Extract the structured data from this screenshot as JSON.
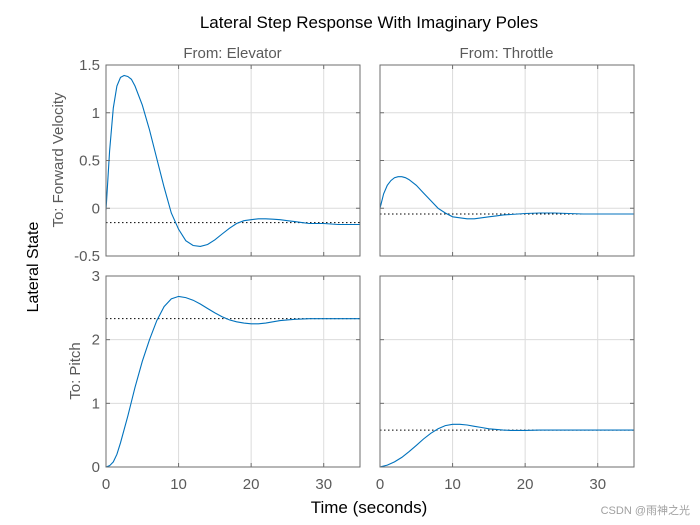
{
  "chart_data": {
    "type": "line",
    "title": "Lateral Step Response With Imaginary Poles",
    "xlabel": "Time (seconds)",
    "ylabel": "Lateral State",
    "watermark": "CSDN @雨神之光",
    "columns": [
      "From: Elevator",
      "From: Throttle"
    ],
    "rows": [
      "To: Forward Velocity",
      "To: Pitch"
    ],
    "xlim": [
      0,
      35
    ],
    "xticks": [
      0,
      10,
      20,
      30
    ],
    "row_axes": [
      {
        "ylim": [
          -0.5,
          1.5
        ],
        "yticks": [
          -0.5,
          0,
          0.5,
          1,
          1.5
        ],
        "yticklabels": [
          "-0.5",
          "0",
          "0.5",
          "1",
          "1.5"
        ]
      },
      {
        "ylim": [
          0,
          3
        ],
        "yticks": [
          0,
          1,
          2,
          3
        ],
        "yticklabels": [
          "0",
          "1",
          "2",
          "3"
        ]
      }
    ],
    "panels": [
      {
        "from": "From: Elevator",
        "to": "To: Forward Velocity",
        "row": 0,
        "col": 0,
        "steady_state": -0.15,
        "series": [
          {
            "name": "Elevator to Forward Velocity",
            "x": [
              0,
              0.5,
              1,
              1.5,
              2,
              2.5,
              3,
              3.5,
              4,
              5,
              6,
              7,
              8,
              9,
              10,
              11,
              12,
              13,
              14,
              15,
              16,
              17,
              18,
              19,
              20,
              21,
              22,
              23,
              24,
              25,
              26,
              27,
              28,
              30,
              32,
              35
            ],
            "y": [
              -0.02,
              0.6,
              1.05,
              1.28,
              1.37,
              1.39,
              1.38,
              1.35,
              1.28,
              1.08,
              0.82,
              0.52,
              0.22,
              -0.05,
              -0.22,
              -0.34,
              -0.39,
              -0.4,
              -0.38,
              -0.33,
              -0.27,
              -0.21,
              -0.16,
              -0.13,
              -0.12,
              -0.11,
              -0.11,
              -0.115,
              -0.12,
              -0.13,
              -0.14,
              -0.15,
              -0.16,
              -0.16,
              -0.17,
              -0.17
            ]
          }
        ]
      },
      {
        "from": "From: Throttle",
        "to": "To: Forward Velocity",
        "row": 0,
        "col": 1,
        "steady_state": -0.06,
        "series": [
          {
            "name": "Throttle to Forward Velocity",
            "x": [
              0,
              0.5,
              1,
              1.5,
              2,
              2.5,
              3,
              3.5,
              4,
              5,
              6,
              7,
              8,
              9,
              10,
              11,
              12,
              13,
              14,
              15,
              16,
              17,
              18,
              19,
              20,
              22,
              24,
              26,
              28,
              30,
              32,
              35
            ],
            "y": [
              0.0,
              0.15,
              0.24,
              0.29,
              0.32,
              0.33,
              0.33,
              0.32,
              0.3,
              0.24,
              0.16,
              0.08,
              0.0,
              -0.05,
              -0.09,
              -0.1,
              -0.11,
              -0.11,
              -0.1,
              -0.09,
              -0.08,
              -0.07,
              -0.065,
              -0.06,
              -0.055,
              -0.05,
              -0.05,
              -0.055,
              -0.06,
              -0.06,
              -0.06,
              -0.06
            ]
          }
        ]
      },
      {
        "from": "From: Elevator",
        "to": "To: Pitch",
        "row": 1,
        "col": 0,
        "steady_state": 2.33,
        "series": [
          {
            "name": "Elevator to Pitch",
            "x": [
              0,
              0.5,
              1,
              1.5,
              2,
              3,
              4,
              5,
              6,
              7,
              8,
              9,
              10,
              11,
              12,
              13,
              14,
              15,
              16,
              17,
              18,
              19,
              20,
              21,
              22,
              23,
              24,
              25,
              26,
              28,
              30,
              32,
              35
            ],
            "y": [
              0.0,
              0.02,
              0.08,
              0.2,
              0.38,
              0.8,
              1.25,
              1.66,
              2.0,
              2.3,
              2.52,
              2.64,
              2.68,
              2.66,
              2.62,
              2.56,
              2.49,
              2.42,
              2.36,
              2.31,
              2.28,
              2.26,
              2.25,
              2.25,
              2.26,
              2.28,
              2.3,
              2.31,
              2.32,
              2.33,
              2.33,
              2.33,
              2.33
            ]
          }
        ]
      },
      {
        "from": "From: Throttle",
        "to": "To: Pitch",
        "row": 1,
        "col": 1,
        "steady_state": 0.58,
        "series": [
          {
            "name": "Throttle to Pitch",
            "x": [
              0,
              1,
              2,
              3,
              4,
              5,
              6,
              7,
              8,
              9,
              10,
              11,
              12,
              13,
              14,
              15,
              16,
              17,
              18,
              19,
              20,
              22,
              24,
              26,
              28,
              30,
              32,
              35
            ],
            "y": [
              0.0,
              0.03,
              0.08,
              0.15,
              0.24,
              0.34,
              0.44,
              0.53,
              0.6,
              0.65,
              0.67,
              0.67,
              0.66,
              0.64,
              0.62,
              0.6,
              0.59,
              0.58,
              0.575,
              0.575,
              0.575,
              0.58,
              0.58,
              0.58,
              0.58,
              0.58,
              0.58,
              0.58
            ]
          }
        ]
      }
    ]
  }
}
